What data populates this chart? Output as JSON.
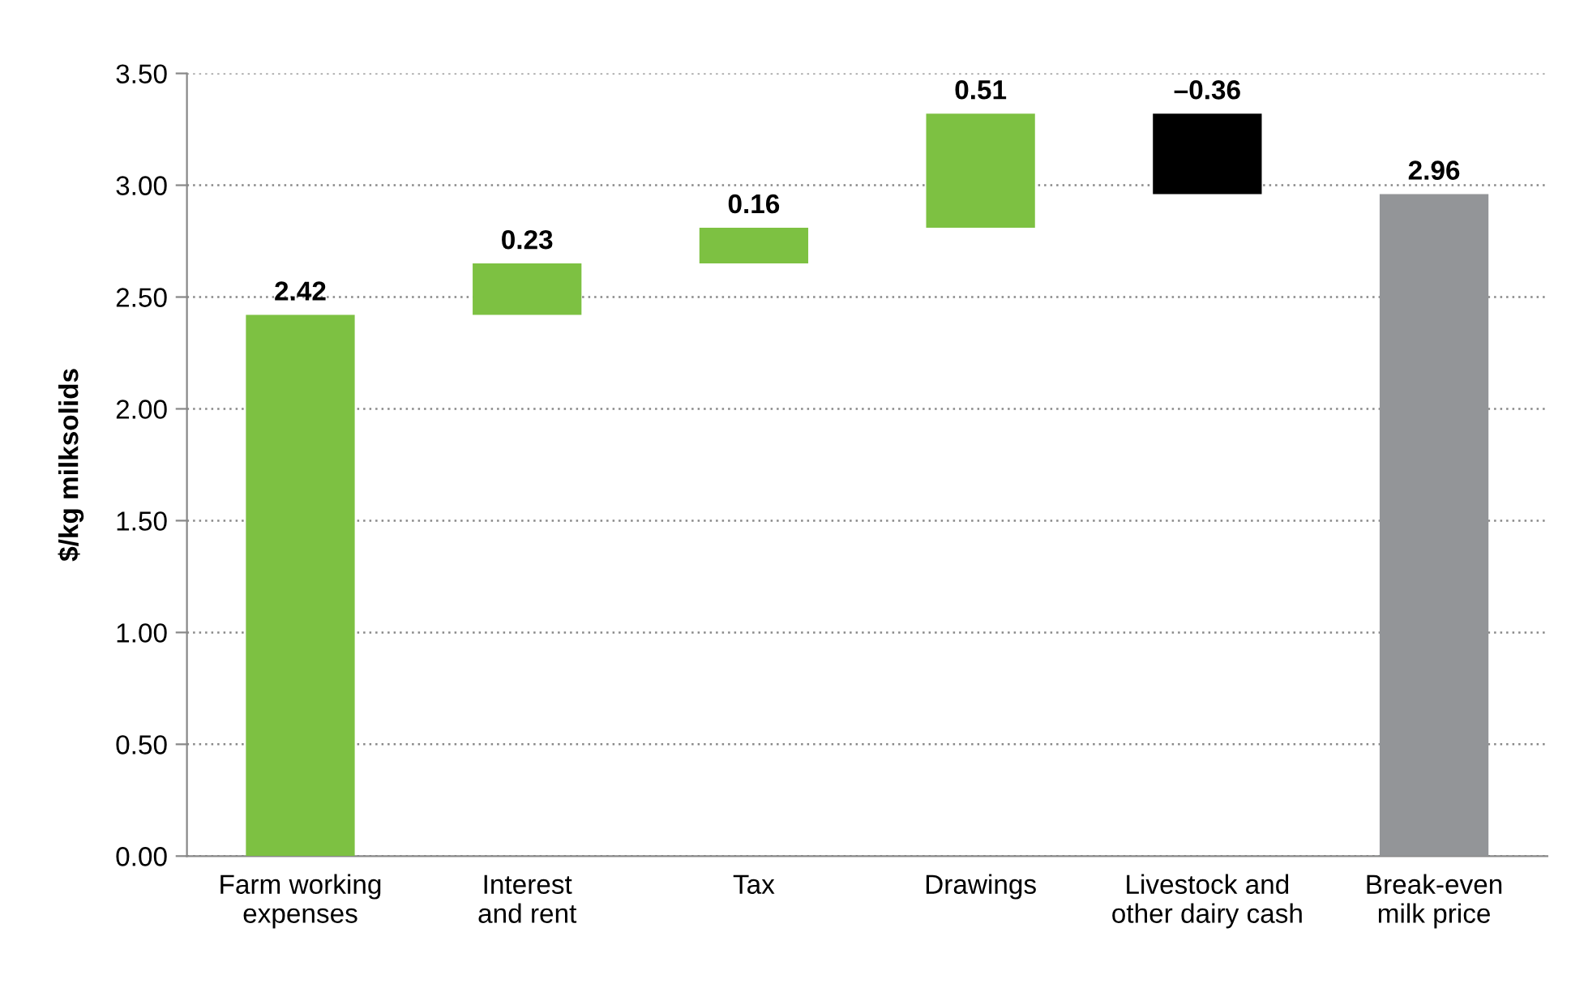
{
  "chart_data": {
    "type": "bar",
    "ylabel": "$/kg milksolids",
    "categories": [
      "Farm working\nexpenses",
      "Interest\nand rent",
      "Tax",
      "Drawings",
      "Livestock and\nother dairy cash",
      "Break-even\nmilk price"
    ],
    "values": [
      2.42,
      0.23,
      0.16,
      0.51,
      -0.36,
      2.96
    ],
    "base": [
      0,
      2.42,
      2.65,
      2.81,
      3.32,
      0
    ],
    "colors": [
      "#7dc142",
      "#7dc142",
      "#7dc142",
      "#7dc142",
      "#000000",
      "#939598"
    ],
    "value_labels": [
      "2.42",
      "0.23",
      "0.16",
      "0.51",
      "–0.36",
      "2.96"
    ],
    "ylim": [
      0,
      3.5
    ],
    "yticks": [
      {
        "value": 0,
        "label": "0.00"
      },
      {
        "value": 0.5,
        "label": "0.50"
      },
      {
        "value": 1,
        "label": "1.00"
      },
      {
        "value": 1.5,
        "label": "1.50"
      },
      {
        "value": 2,
        "label": "2.00"
      },
      {
        "value": 2.5,
        "label": "2.50"
      },
      {
        "value": 3,
        "label": "3.00"
      },
      {
        "value": 3.5,
        "label": "3.50"
      }
    ],
    "grid": "y"
  }
}
